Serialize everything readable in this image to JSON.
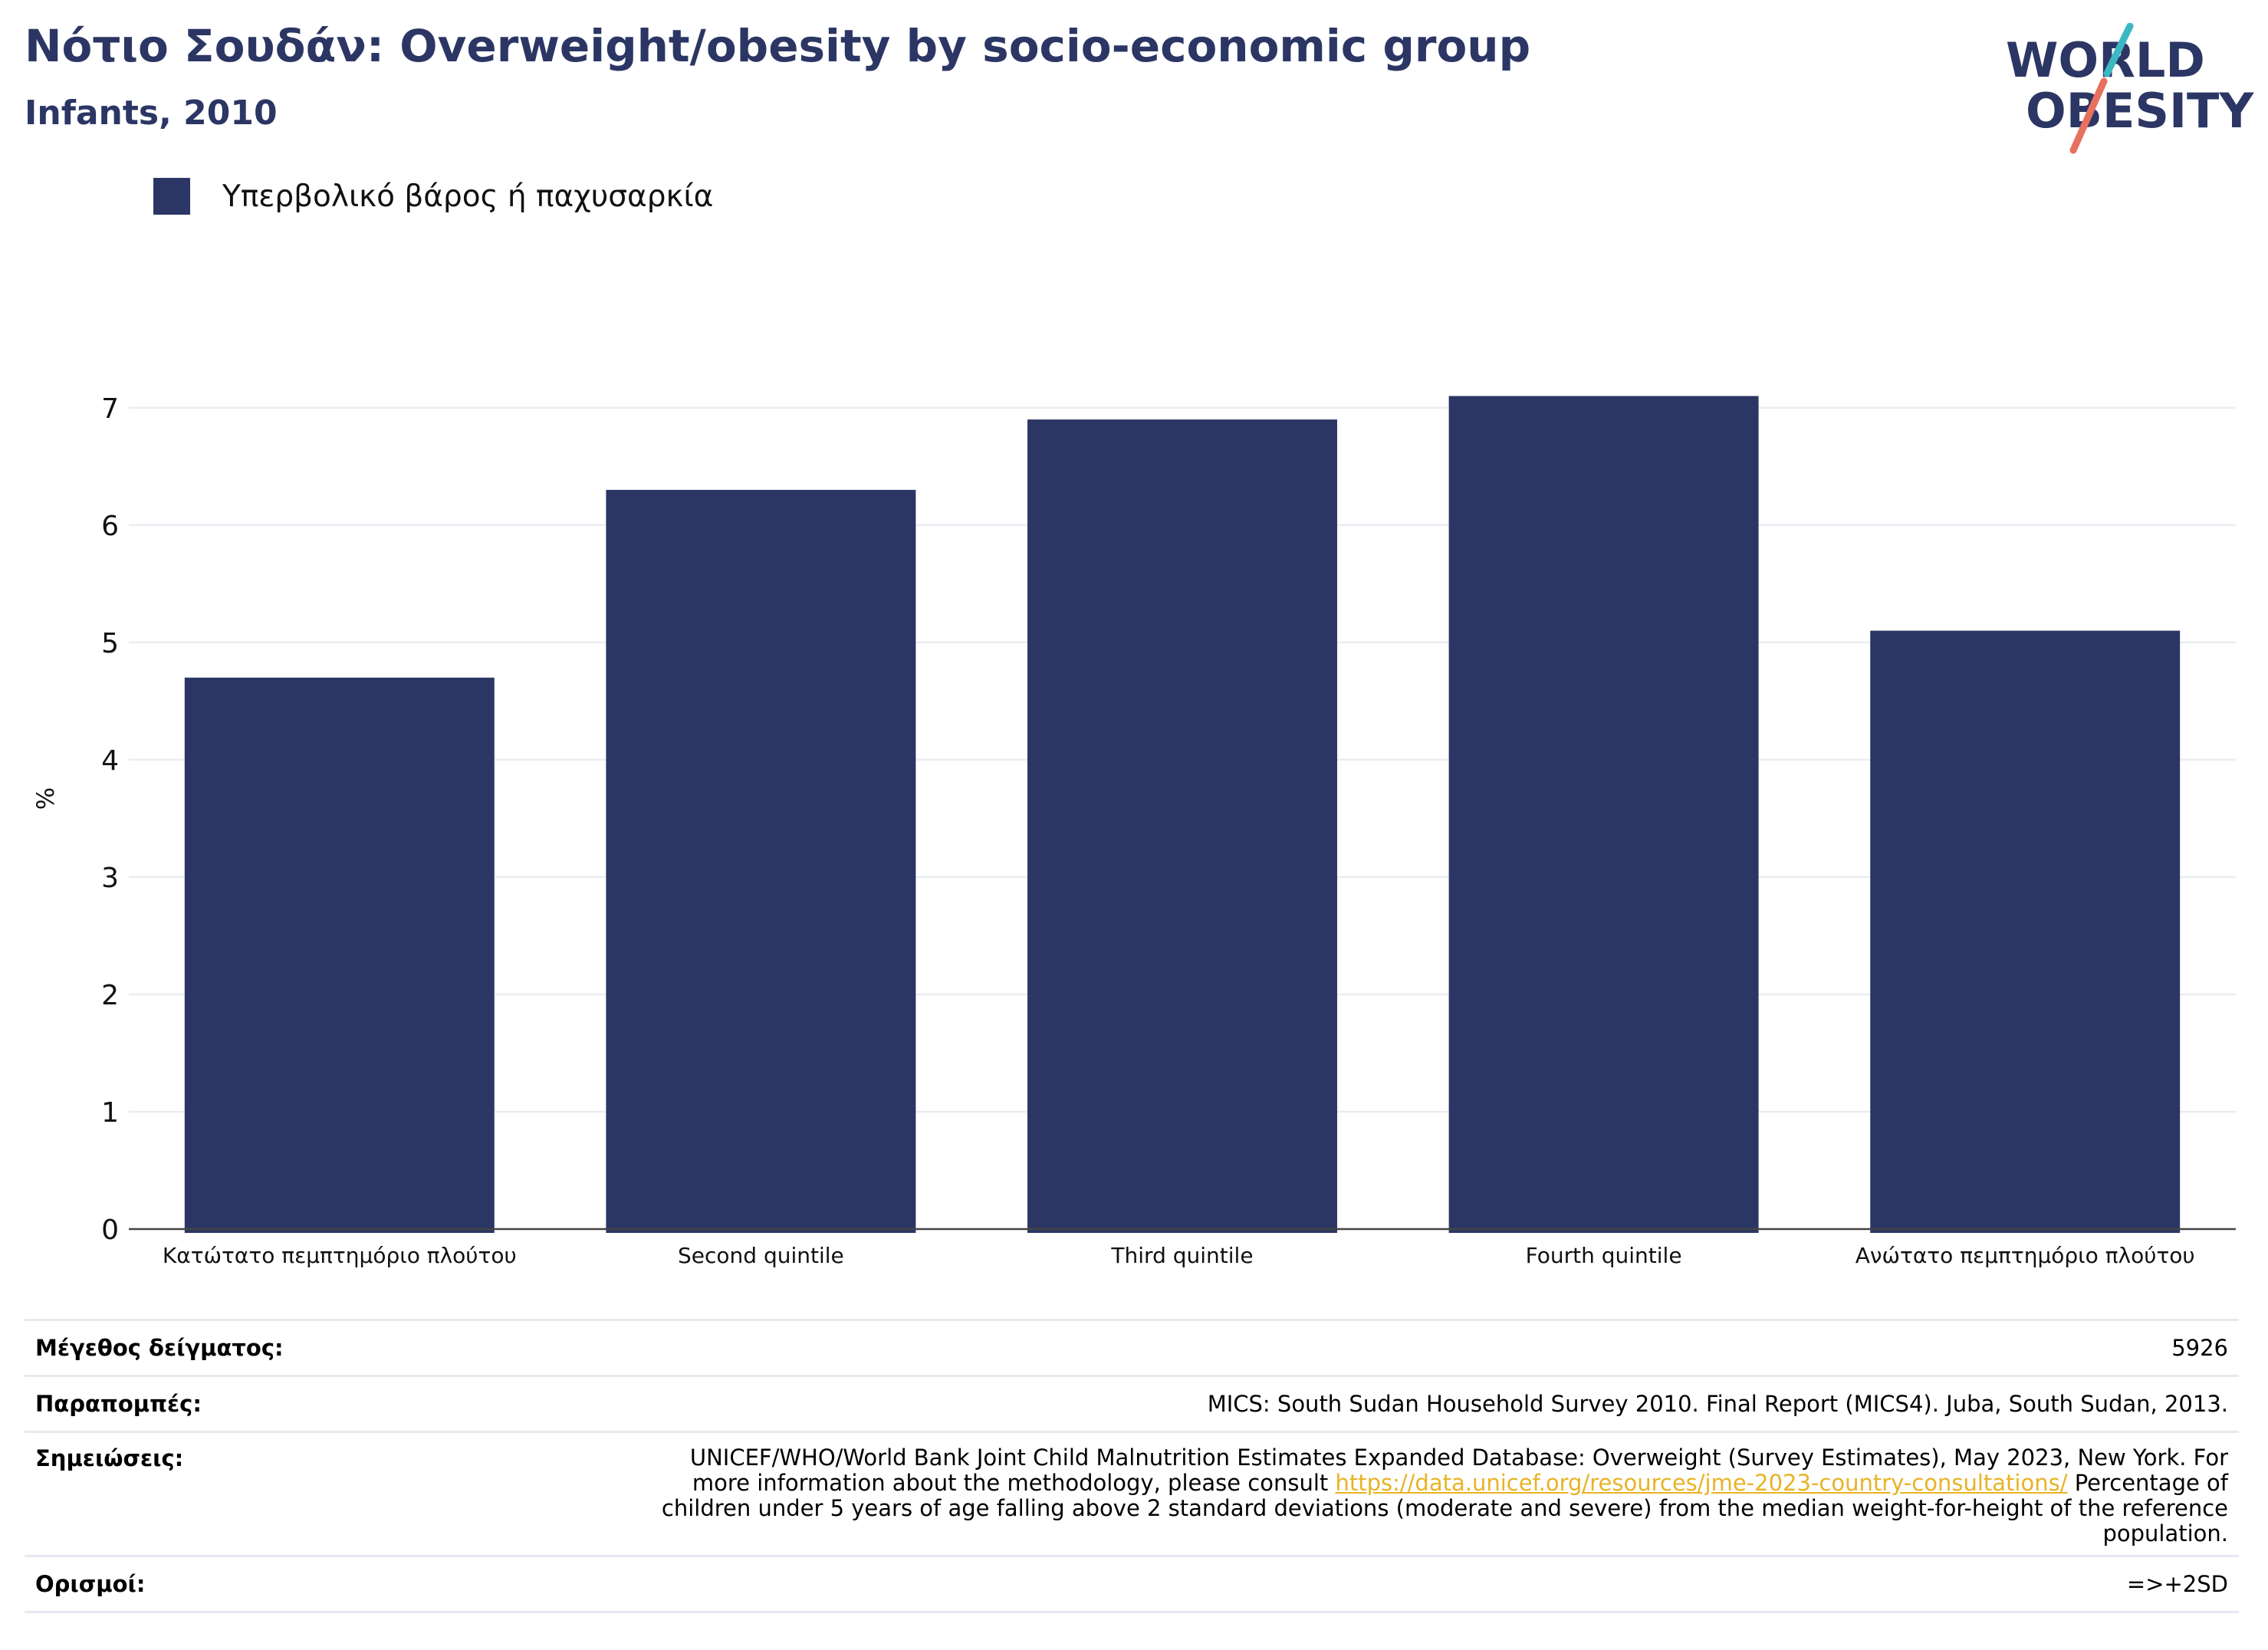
{
  "header": {
    "title": "Νότιο Σουδάν: Overweight/obesity by socio-economic group",
    "subtitle": "Infants, 2010"
  },
  "logo": {
    "line1": "WORLD",
    "line2": "OBESITY"
  },
  "colors": {
    "bar": "#2c3664",
    "title": "#2c3664",
    "accent_teal": "#3bb8c4",
    "accent_red": "#e8705e",
    "link": "#e8b325"
  },
  "chart_data": {
    "type": "bar",
    "title": "Νότιο Σουδάν: Overweight/obesity by socio-economic group",
    "subtitle": "Infants, 2010",
    "ylabel": "%",
    "xlabel": "",
    "ylim": [
      0,
      7.6
    ],
    "yticks": [
      0,
      1,
      2,
      3,
      4,
      5,
      6,
      7
    ],
    "grid": true,
    "legend_position": "top-left",
    "categories": [
      "Κατώτατο πεμπτημόριο πλούτου",
      "Second quintile",
      "Third quintile",
      "Fourth quintile",
      "Ανώτατο πεμπτημόριο πλούτου"
    ],
    "series": [
      {
        "name": "Υπερβολικό βάρος ή παχυσαρκία",
        "values": [
          4.7,
          6.3,
          6.9,
          7.1,
          5.1
        ]
      }
    ]
  },
  "info": {
    "sample_label": "Μέγεθος δείγματος:",
    "sample_value": "5926",
    "references_label": "Παραπομπές:",
    "references_value": "MICS: South Sudan Household Survey 2010. Final Report (MICS4). Juba, South Sudan, 2013.",
    "notes_label": "Σημειώσεις:",
    "notes_line1": "UNICEF/WHO/World Bank Joint Child Malnutrition Estimates Expanded Database: Overweight (Survey Estimates), May 2023, New York. For",
    "notes_line2_pre": "more information about the methodology, please consult",
    "notes_link": "https://data.unicef.org/resources/jme-2023-country-consultations/",
    "notes_line2_post": "Percentage of",
    "notes_line3": "children under 5 years of age falling above 2 standard deviations (moderate and severe) from the median weight-for-height of the reference",
    "notes_line4": "population.",
    "definitions_label": "Ορισμοί:",
    "definitions_value": "=>+2SD"
  }
}
